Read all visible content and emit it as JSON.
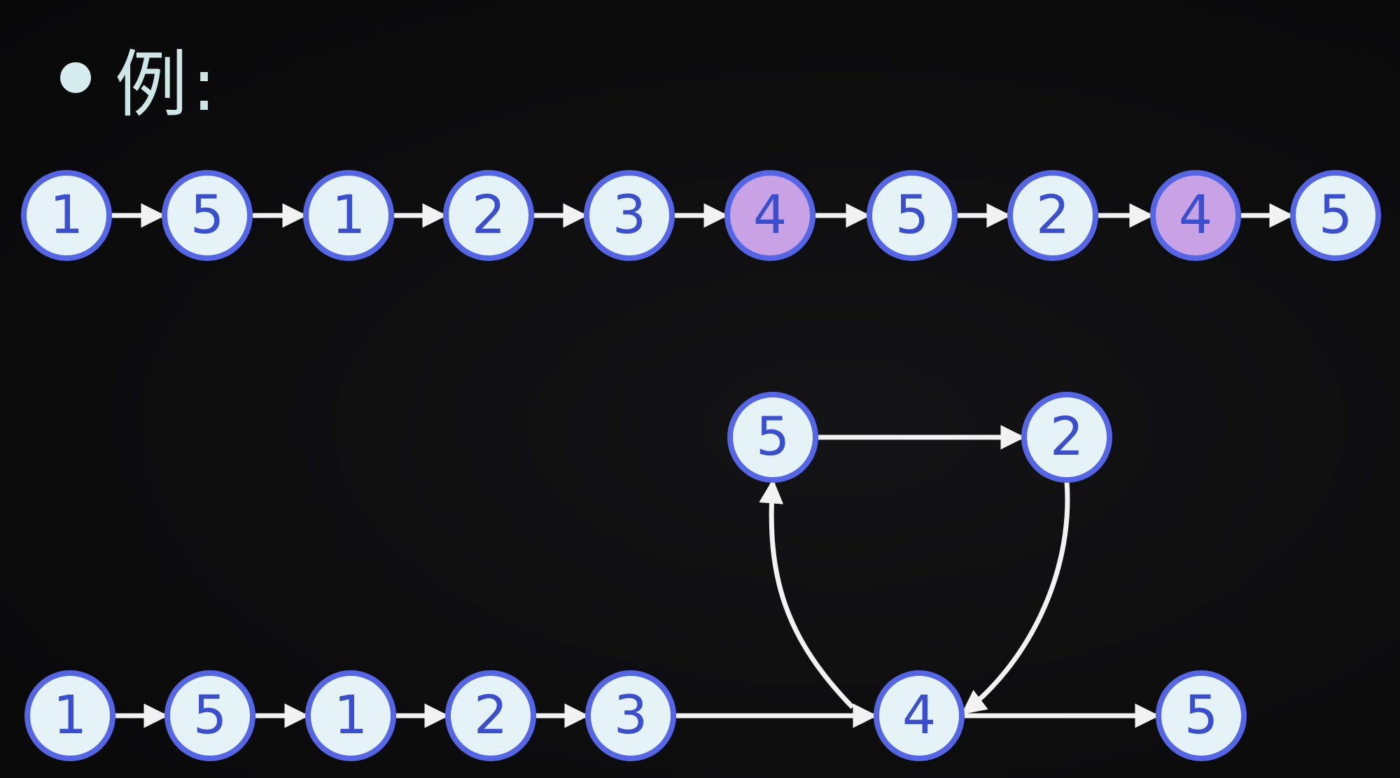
{
  "heading": {
    "text": "例:"
  },
  "colors": {
    "node_fill": "#e6f3f6",
    "node_fill_highlight": "#c9a2e6",
    "node_stroke": "#5466e6",
    "node_text": "#3a4fd0",
    "edge": "#f2f2f2"
  },
  "sequence": [
    {
      "value": "1",
      "highlight": false
    },
    {
      "value": "5",
      "highlight": false
    },
    {
      "value": "1",
      "highlight": false
    },
    {
      "value": "2",
      "highlight": false
    },
    {
      "value": "3",
      "highlight": false
    },
    {
      "value": "4",
      "highlight": true
    },
    {
      "value": "5",
      "highlight": false
    },
    {
      "value": "2",
      "highlight": false
    },
    {
      "value": "4",
      "highlight": true
    },
    {
      "value": "5",
      "highlight": false
    }
  ],
  "graph": {
    "nodes": [
      {
        "id": "b1",
        "value": "1"
      },
      {
        "id": "b2",
        "value": "5"
      },
      {
        "id": "b3",
        "value": "1"
      },
      {
        "id": "b4",
        "value": "2"
      },
      {
        "id": "b5",
        "value": "3"
      },
      {
        "id": "b6",
        "value": "4"
      },
      {
        "id": "b7",
        "value": "5"
      },
      {
        "id": "t1",
        "value": "5"
      },
      {
        "id": "t2",
        "value": "2"
      }
    ],
    "edges": [
      {
        "from": "b1",
        "to": "b2"
      },
      {
        "from": "b2",
        "to": "b3"
      },
      {
        "from": "b3",
        "to": "b4"
      },
      {
        "from": "b4",
        "to": "b5"
      },
      {
        "from": "b5",
        "to": "b6"
      },
      {
        "from": "b6",
        "to": "b7"
      },
      {
        "from": "b6",
        "to": "t1"
      },
      {
        "from": "t1",
        "to": "t2"
      },
      {
        "from": "t2",
        "to": "b6"
      }
    ]
  }
}
